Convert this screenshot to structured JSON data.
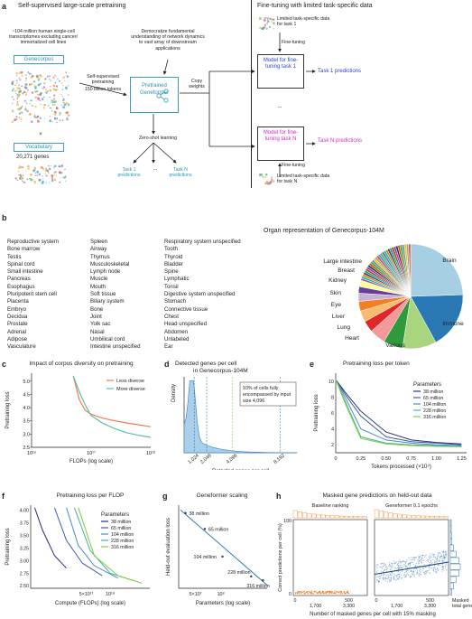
{
  "panels": {
    "a": "a",
    "b": "b",
    "c": "c",
    "d": "d",
    "e": "e",
    "f": "f",
    "g": "g",
    "h": "h"
  },
  "a": {
    "left_title": "Self-supervised large-scale pretraining",
    "right_title": "Fine-tuning with limited task-specific data",
    "corpus_desc": "~104 million human single-cell transcriptomes excluding cancer/ immortalized cell lines",
    "genecorpus_label": "Genecorpus",
    "vocab_label": "Vocabulary",
    "genes_count": "20,271 genes",
    "democratize": "Democratize fundamental understanding of network dynamics to vast array of downstream applications",
    "ssp_line1": "Self-supervised pretraining",
    "ssp_line2": "150 billion tokens",
    "pretrained_label": "Pretrained Geneformer",
    "copy_weights": "Copy weights",
    "zero_shot": "Zero-shot learning",
    "task1_pred": "Task 1 predictions",
    "ellipsis": "...",
    "taskN_pred": "Task N predictions",
    "limited_task1": "Limited task-specific data for task 1",
    "fine_tuning": "Fine-tuning",
    "model_task1": "Model for fine-tuning task 1",
    "model_taskN": "Model for fine-tuning task N",
    "limited_taskN": "Limited task-specific data for task N",
    "times": "×"
  },
  "b": {
    "pie_title": "Organ representation of Genecorpus-104M",
    "col1": [
      "Reproductive system",
      "Bone marrow",
      "Testis",
      "Spinal cord",
      "Small intestine",
      "Pancreas",
      "Esophagus",
      "Pluripotent stem cell",
      "Placenta",
      "Embryo",
      "Decidua",
      "Prostate",
      "Adrenal",
      "Adipose",
      "Vasculature"
    ],
    "col2": [
      "Spleen",
      "Airway",
      "Thymus",
      "Musculoskeletal",
      "Lymph node",
      "Muscle",
      "Mouth",
      "Soft tissue",
      "Biliary system",
      "Bone",
      "Joint",
      "Yolk sac",
      "Nasal",
      "Umbilical cord",
      "Intestine unspecified"
    ],
    "col3": [
      "Respiratory system unspecified",
      "Tooth",
      "Thyroid",
      "Bladder",
      "Spine",
      "Lymphatic",
      "Tonsil",
      "Digestive system unspecified",
      "Stomach",
      "Connective tissue",
      "Chest",
      "Head unspecified",
      "Abdomen",
      "Unlabeled",
      "Ear"
    ],
    "pie_labels": {
      "brain": "Brain",
      "immune": "Immune",
      "various": "Various",
      "heart": "Heart",
      "lung": "Lung",
      "liver": "Liver",
      "eye": "Eye",
      "skin": "Skin",
      "kidney": "Kidney",
      "breast": "Breast",
      "large_intestine": "Large intestine"
    },
    "colors": {
      "brain": "#a6cfe3",
      "immune": "#2a78b4",
      "various": "#a9d57f",
      "heart": "#2f9a3c",
      "lung": "#f19a99",
      "liver": "#e1262a",
      "eye": "#f9bc6e",
      "skin": "#f57f20",
      "kidney": "#c7b2d6",
      "breast": "#6a3d9a",
      "large_intestine": "#ffff99"
    }
  },
  "chart_data": [
    {
      "panel": "c",
      "type": "line",
      "title": "Impact of corpus diversity on pretraining",
      "xlabel": "FLOPs (log scale)",
      "ylabel": "Pretraining loss",
      "xticks": [
        "10¹⁶",
        "10¹⁷",
        "10¹⁸"
      ],
      "yticks": [
        "2.5",
        "3.0",
        "3.5",
        "4.0",
        "4.5",
        "5.0"
      ],
      "ylim": [
        2.5,
        5.3
      ],
      "series": [
        {
          "name": "Less diverse",
          "color": "#f07b4f",
          "x_log10": [
            16.7,
            16.8,
            16.9,
            17.0,
            17.2,
            17.4,
            17.6,
            17.8,
            18.0
          ],
          "y": [
            5.2,
            4.3,
            3.9,
            3.75,
            3.6,
            3.5,
            3.42,
            3.35,
            3.28
          ]
        },
        {
          "name": "More diverse",
          "color": "#59c1a8",
          "x_log10": [
            16.7,
            16.8,
            16.9,
            17.0,
            17.2,
            17.4,
            17.6,
            17.8,
            18.0
          ],
          "y": [
            5.2,
            4.6,
            4.1,
            3.7,
            3.4,
            3.2,
            3.05,
            2.95,
            2.88
          ]
        }
      ]
    },
    {
      "panel": "d",
      "type": "area",
      "title": "Detected genes per cell in Genecorpus-104M",
      "xlabel": "Detected genes per cell",
      "ylabel": "Density",
      "xticks": [
        "1,024",
        "2,048",
        "4,096",
        "8,192"
      ],
      "annotation": "93% of cells fully encompassed by input size 4,096"
    },
    {
      "panel": "e",
      "type": "line",
      "title": "Pretraining loss per token",
      "xlabel": "Tokens processed (×10⁹)",
      "ylabel": "Pretraining loss",
      "xticks": [
        "0",
        "0.25",
        "0.50",
        "0.75",
        "1.00",
        "1.25"
      ],
      "yticks": [
        "2",
        "4",
        "6",
        "8",
        "10"
      ],
      "ylim": [
        1,
        11
      ],
      "legend_title": "Parameters",
      "series": [
        {
          "name": "38 million",
          "color": "#2a2f7a",
          "x": [
            0,
            0.1,
            0.25,
            0.5,
            0.75,
            1.0,
            1.25
          ],
          "y": [
            10.2,
            8.5,
            6.2,
            3.6,
            2.6,
            2.3,
            2.1
          ]
        },
        {
          "name": "65 million",
          "color": "#3f5dab",
          "x": [
            0,
            0.1,
            0.25,
            0.5,
            0.75,
            1.0,
            1.25
          ],
          "y": [
            10.2,
            8.2,
            5.6,
            3.0,
            2.4,
            2.2,
            2.0
          ]
        },
        {
          "name": "104 million",
          "color": "#4a8cc6",
          "x": [
            0,
            0.1,
            0.25,
            0.5,
            0.75,
            1.0,
            1.25
          ],
          "y": [
            10.2,
            7.8,
            4.0,
            2.6,
            2.2,
            2.0,
            1.9
          ]
        },
        {
          "name": "228 million",
          "color": "#46b3a1",
          "x": [
            0,
            0.1,
            0.25,
            0.5,
            0.75,
            1.0,
            1.25
          ],
          "y": [
            10.2,
            7.3,
            3.0,
            2.2,
            2.0,
            1.9,
            1.8
          ]
        },
        {
          "name": "316 million",
          "color": "#7fca3e",
          "x": [
            0,
            0.1,
            0.25,
            0.5,
            0.75,
            1.0,
            1.25
          ],
          "y": [
            10.2,
            7.0,
            2.8,
            2.1,
            1.9,
            1.8,
            1.75
          ]
        }
      ]
    },
    {
      "panel": "f",
      "type": "line",
      "title": "Pretraining loss per FLOP",
      "xlabel": "Compute (FLOPs) (log scale)",
      "ylabel": "Pretraining loss",
      "xticks": [
        "5×10¹⁷",
        "10¹⁸"
      ],
      "yticks": [
        "2.50",
        "2.75",
        "3.00",
        "3.25",
        "3.50",
        "3.75",
        "4.00"
      ],
      "ylim": [
        2.45,
        4.1
      ],
      "legend_title": "Parameters",
      "series": [
        {
          "name": "38 million",
          "color": "#2a2f7a",
          "x_log10": [
            17.05,
            17.15,
            17.3,
            17.45
          ],
          "y": [
            4.05,
            3.6,
            3.1,
            2.85
          ]
        },
        {
          "name": "65 million",
          "color": "#3f5dab",
          "x_log10": [
            17.3,
            17.45,
            17.65,
            17.9
          ],
          "y": [
            4.05,
            3.4,
            2.95,
            2.7
          ]
        },
        {
          "name": "104 million",
          "color": "#4a8cc6",
          "x_log10": [
            17.45,
            17.6,
            17.8,
            18.1
          ],
          "y": [
            4.05,
            3.3,
            2.9,
            2.65
          ]
        },
        {
          "name": "228 million",
          "color": "#46b3a1",
          "x_log10": [
            17.55,
            17.75,
            18.0,
            18.3
          ],
          "y": [
            4.05,
            3.2,
            2.75,
            2.6
          ]
        },
        {
          "name": "316 million",
          "color": "#7fca3e",
          "x_log10": [
            17.6,
            17.8,
            18.1,
            18.4
          ],
          "y": [
            4.05,
            3.1,
            2.7,
            2.55
          ]
        }
      ]
    },
    {
      "panel": "g",
      "type": "scatter",
      "title": "Geneformer scaling",
      "xlabel": "Parameters (log scale)",
      "ylabel": "Held-out evaluation loss",
      "xticks": [
        "5×10⁷",
        "10⁸"
      ],
      "points": [
        {
          "label": "38 million",
          "x_log10": 7.58,
          "y": 4.0
        },
        {
          "label": "65 million",
          "x_log10": 7.81,
          "y": 3.6
        },
        {
          "label": "104 million",
          "x_log10": 8.02,
          "y": 2.9
        },
        {
          "label": "228 million",
          "x_log10": 8.36,
          "y": 2.4
        },
        {
          "label": "316 million",
          "x_log10": 8.5,
          "y": 2.3
        }
      ]
    },
    {
      "panel": "h",
      "type": "scatter",
      "title": "Masked gene predictions on held-out data",
      "subtitles": [
        "Baseline ranking",
        "Geneformer 0.1 epochs"
      ],
      "xlabel": "Number of masked genes per cell with 15% masking",
      "ylabel": "Correct predictions per cell (%)",
      "yticks": [
        "0",
        "100"
      ],
      "xticks_left": [
        "0",
        "500",
        "1,700",
        "3,300"
      ],
      "xticks_right": [
        "0",
        "500",
        "1,700",
        "3,300"
      ],
      "side_label": "Masked total genes"
    }
  ]
}
